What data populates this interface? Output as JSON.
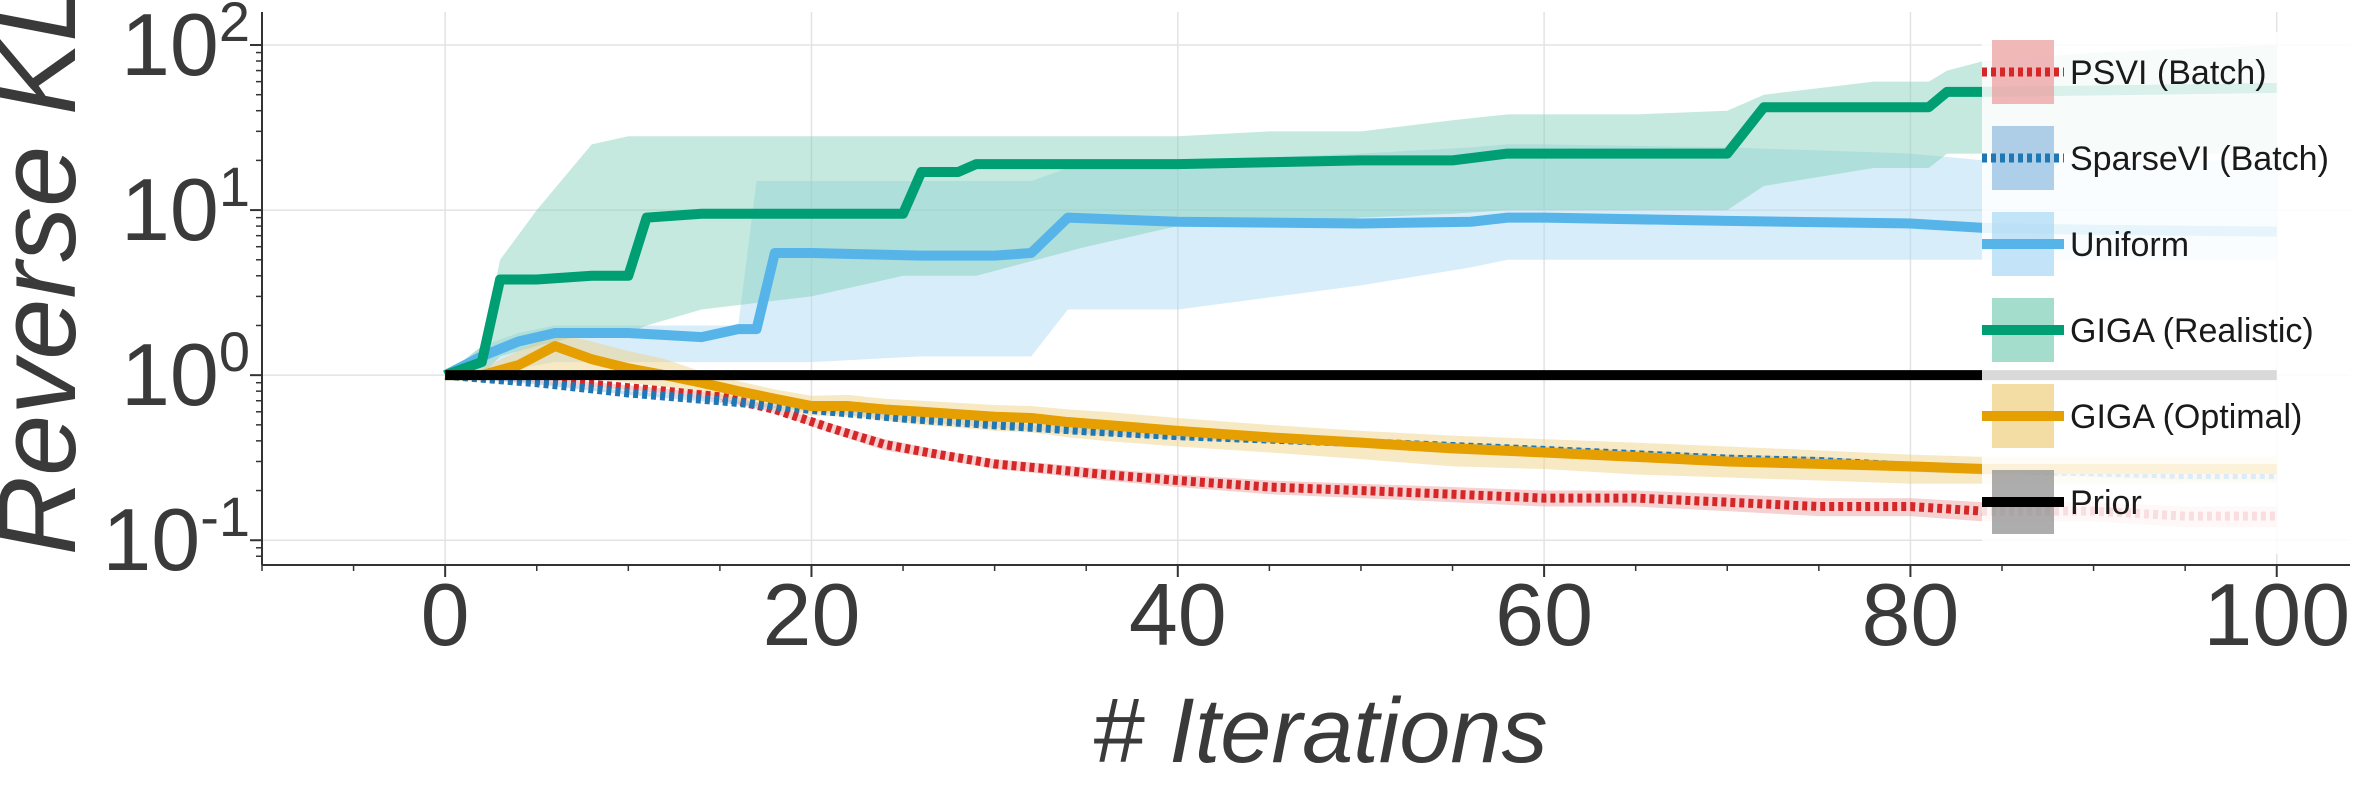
{
  "chart_data": {
    "type": "line",
    "xlabel": "# Iterations",
    "ylabel": "Reverse KL",
    "xlim": [
      -10,
      104
    ],
    "ylim_log10": [
      -1.15,
      2.2
    ],
    "y_scale": "log",
    "x_ticks": [
      "0",
      "20",
      "40",
      "60",
      "80",
      "100"
    ],
    "y_ticks": [
      {
        "base": "10",
        "exp": "2"
      },
      {
        "base": "10",
        "exp": "1"
      },
      {
        "base": "10",
        "exp": "0"
      },
      {
        "base": "10",
        "exp": "-1"
      }
    ],
    "grid": true,
    "legend_position": "right",
    "series": [
      {
        "name": "PSVI (Batch)",
        "color": "#d62728",
        "style": "dotted",
        "band_color": "#eb9a9a",
        "x": [
          0,
          3,
          6,
          9,
          12,
          15,
          18,
          21,
          24,
          27,
          30,
          33,
          36,
          40,
          45,
          50,
          55,
          60,
          65,
          70,
          75,
          80,
          84,
          90,
          95,
          100
        ],
        "y": [
          1.0,
          0.95,
          0.92,
          0.86,
          0.8,
          0.74,
          0.62,
          0.48,
          0.38,
          0.33,
          0.29,
          0.27,
          0.25,
          0.23,
          0.21,
          0.2,
          0.19,
          0.18,
          0.18,
          0.17,
          0.16,
          0.16,
          0.15,
          0.15,
          0.14,
          0.14
        ],
        "lo": [
          0.98,
          0.93,
          0.89,
          0.83,
          0.77,
          0.71,
          0.59,
          0.45,
          0.35,
          0.31,
          0.27,
          0.25,
          0.23,
          0.21,
          0.19,
          0.18,
          0.17,
          0.16,
          0.16,
          0.15,
          0.14,
          0.14,
          0.13,
          0.13,
          0.12,
          0.12
        ],
        "hi": [
          1.02,
          0.97,
          0.95,
          0.89,
          0.83,
          0.77,
          0.65,
          0.51,
          0.41,
          0.35,
          0.31,
          0.29,
          0.27,
          0.25,
          0.23,
          0.22,
          0.21,
          0.2,
          0.2,
          0.19,
          0.18,
          0.18,
          0.17,
          0.17,
          0.16,
          0.16
        ]
      },
      {
        "name": "SparseVI (Batch)",
        "color": "#1f77b4",
        "style": "dotted",
        "band_color": "#8fbbe0",
        "x": [
          0,
          5,
          10,
          15,
          20,
          25,
          30,
          35,
          40,
          45,
          50,
          55,
          60,
          65,
          70,
          75,
          80,
          84,
          90,
          95,
          100
        ],
        "y": [
          1.0,
          0.9,
          0.78,
          0.7,
          0.62,
          0.55,
          0.5,
          0.46,
          0.43,
          0.41,
          0.39,
          0.37,
          0.35,
          0.33,
          0.31,
          0.3,
          0.28,
          0.27,
          0.26,
          0.25,
          0.25
        ],
        "lo": [
          0.98,
          0.88,
          0.76,
          0.68,
          0.6,
          0.53,
          0.48,
          0.44,
          0.41,
          0.39,
          0.37,
          0.35,
          0.33,
          0.31,
          0.29,
          0.28,
          0.26,
          0.25,
          0.24,
          0.23,
          0.23
        ],
        "hi": [
          1.02,
          0.92,
          0.8,
          0.72,
          0.64,
          0.57,
          0.52,
          0.48,
          0.45,
          0.43,
          0.41,
          0.39,
          0.37,
          0.35,
          0.33,
          0.32,
          0.3,
          0.29,
          0.28,
          0.27,
          0.27
        ]
      },
      {
        "name": "Uniform",
        "color": "#56b4e9",
        "style": "solid",
        "band_color": "#a9d8f5",
        "x": [
          0,
          2,
          4,
          6,
          8,
          10,
          12,
          14,
          16,
          17,
          18,
          20,
          26,
          30,
          32,
          34,
          40,
          50,
          56,
          58,
          60,
          70,
          80,
          84,
          90,
          100
        ],
        "y": [
          1.0,
          1.3,
          1.6,
          1.8,
          1.8,
          1.8,
          1.75,
          1.7,
          1.9,
          1.9,
          5.5,
          5.5,
          5.3,
          5.3,
          5.5,
          9.0,
          8.5,
          8.3,
          8.5,
          9.0,
          9.0,
          8.6,
          8.3,
          7.8,
          7.6,
          7.4
        ],
        "lo": [
          1.0,
          1.1,
          1.1,
          1.2,
          1.2,
          1.2,
          1.2,
          1.2,
          1.2,
          1.2,
          1.2,
          1.2,
          1.3,
          1.3,
          1.3,
          2.5,
          2.5,
          3.5,
          4.5,
          5.0,
          5.0,
          5.0,
          5.0,
          5.0,
          5.0,
          5.0
        ],
        "hi": [
          1.0,
          1.5,
          1.8,
          2.0,
          2.0,
          2.0,
          2.0,
          2.0,
          2.0,
          15,
          15,
          15,
          15,
          15,
          15,
          18,
          20,
          22,
          24,
          25,
          25,
          24,
          22,
          20,
          20,
          20
        ]
      },
      {
        "name": "GIGA (Realistic)",
        "color": "#009e73",
        "style": "solid",
        "band_color": "#7fcfb6",
        "x": [
          0,
          2,
          3,
          5,
          8,
          10,
          11,
          14,
          20,
          25,
          26,
          28,
          29,
          35,
          40,
          45,
          50,
          55,
          58,
          60,
          65,
          70,
          72,
          78,
          81,
          82,
          84,
          90,
          100
        ],
        "y": [
          1.0,
          1.2,
          3.8,
          3.8,
          4.0,
          4.0,
          9.0,
          9.5,
          9.5,
          9.5,
          17,
          17,
          19,
          19,
          19,
          19.5,
          20,
          20,
          22,
          22,
          22,
          22,
          42,
          42,
          42,
          52,
          52,
          53,
          55
        ],
        "lo": [
          1.0,
          1.0,
          1.3,
          1.5,
          1.8,
          1.8,
          2.0,
          2.5,
          3.0,
          4.0,
          4.0,
          4.0,
          4.0,
          6.0,
          8.0,
          8.0,
          9.0,
          9.5,
          10,
          10,
          10,
          10,
          14,
          18,
          18,
          22,
          22,
          22,
          22
        ],
        "hi": [
          1.0,
          1.5,
          5.0,
          10,
          25,
          28,
          28,
          28,
          28,
          28,
          28,
          28,
          28,
          28,
          28,
          30,
          30,
          35,
          38,
          38,
          38,
          40,
          50,
          60,
          60,
          70,
          80,
          90,
          100
        ]
      },
      {
        "name": "GIGA (Optimal)",
        "color": "#e69f00",
        "style": "solid",
        "band_color": "#f0cf7e",
        "x": [
          0,
          2,
          4,
          6,
          8,
          10,
          12,
          14,
          16,
          18,
          20,
          22,
          24,
          26,
          28,
          30,
          32,
          34,
          36,
          40,
          45,
          50,
          55,
          60,
          65,
          70,
          75,
          80,
          84,
          90,
          100
        ],
        "y": [
          1.0,
          1.0,
          1.15,
          1.5,
          1.25,
          1.1,
          1.0,
          0.9,
          0.8,
          0.72,
          0.65,
          0.65,
          0.62,
          0.6,
          0.58,
          0.56,
          0.55,
          0.52,
          0.5,
          0.46,
          0.42,
          0.39,
          0.36,
          0.34,
          0.32,
          0.3,
          0.29,
          0.28,
          0.27,
          0.27,
          0.27
        ],
        "lo": [
          1.0,
          0.95,
          0.95,
          1.0,
          0.95,
          0.9,
          0.85,
          0.78,
          0.7,
          0.63,
          0.57,
          0.56,
          0.53,
          0.5,
          0.48,
          0.46,
          0.45,
          0.42,
          0.4,
          0.37,
          0.34,
          0.31,
          0.28,
          0.27,
          0.25,
          0.24,
          0.23,
          0.22,
          0.22,
          0.22,
          0.22
        ],
        "hi": [
          1.0,
          1.1,
          1.4,
          1.8,
          1.6,
          1.4,
          1.25,
          1.05,
          0.92,
          0.82,
          0.75,
          0.76,
          0.72,
          0.7,
          0.68,
          0.66,
          0.65,
          0.62,
          0.6,
          0.55,
          0.5,
          0.46,
          0.43,
          0.41,
          0.39,
          0.37,
          0.35,
          0.33,
          0.32,
          0.32,
          0.32
        ]
      },
      {
        "name": "Prior",
        "color": "#000000",
        "style": "solid",
        "band_color": "#8a8a8a",
        "x": [
          0,
          100
        ],
        "y": [
          1.0,
          1.0
        ],
        "lo": [
          1.0,
          1.0
        ],
        "hi": [
          1.0,
          1.0
        ]
      }
    ]
  }
}
